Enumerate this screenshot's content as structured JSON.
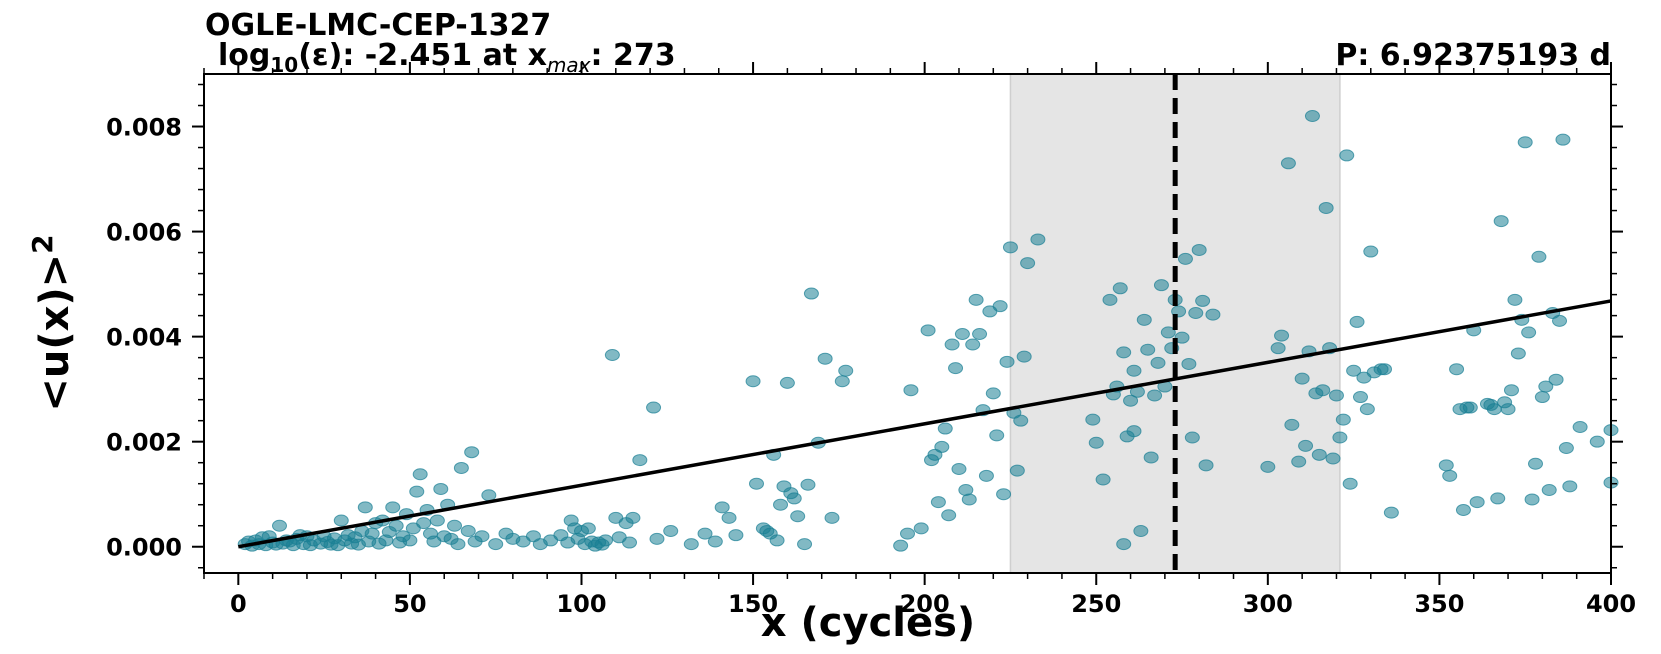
{
  "header": {
    "title": "OGLE-LMC-CEP-1327",
    "eps_prefix": "log",
    "eps_sub": "10",
    "eps_mid": "(ε): -2.451 at x",
    "xmax_sub": "max",
    "xmax_val": ": 273",
    "period": "P: 6.92375193 d"
  },
  "chart_data": {
    "type": "scatter",
    "xlabel": "x (cycles)",
    "ylabel": "<u(x)>",
    "ylabel_sup": "2",
    "xlim": [
      -10,
      400
    ],
    "ylim": [
      -0.0005,
      0.009
    ],
    "xticks": [
      0,
      50,
      100,
      150,
      200,
      250,
      300,
      350,
      400
    ],
    "xtick_labels": [
      "0",
      "50",
      "100",
      "150",
      "200",
      "250",
      "300",
      "350",
      "400"
    ],
    "yticks": [
      0.0,
      0.002,
      0.004,
      0.006,
      0.008
    ],
    "ytick_labels": [
      "0.000",
      "0.002",
      "0.004",
      "0.006",
      "0.008"
    ],
    "colors": {
      "points": "#1a7f94",
      "line": "#000000",
      "band": "#e5e5e5",
      "vline": "#000000"
    },
    "shaded_band": [
      225,
      321
    ],
    "vline_x": 273,
    "fit_line": {
      "x": [
        0,
        400
      ],
      "y": [
        0.0,
        0.00468
      ]
    },
    "points": [
      [
        2,
        5e-05
      ],
      [
        3,
        0.0001
      ],
      [
        4,
        2e-05
      ],
      [
        5,
        0.00012
      ],
      [
        6,
        5e-05
      ],
      [
        7,
        0.00018
      ],
      [
        8,
        3e-05
      ],
      [
        9,
        0.0002
      ],
      [
        10,
        8e-05
      ],
      [
        11,
        4e-05
      ],
      [
        12,
        0.0004
      ],
      [
        13,
        6e-05
      ],
      [
        14,
        0.00012
      ],
      [
        15,
        0.0001
      ],
      [
        16,
        3e-05
      ],
      [
        17,
        0.00015
      ],
      [
        18,
        0.00022
      ],
      [
        19,
        5e-05
      ],
      [
        20,
        0.0002
      ],
      [
        21,
        3e-05
      ],
      [
        22,
        0.00012
      ],
      [
        24,
        6e-05
      ],
      [
        25,
        0.0002
      ],
      [
        26,
        9e-05
      ],
      [
        27,
        4e-05
      ],
      [
        28,
        0.00016
      ],
      [
        29,
        3e-05
      ],
      [
        30,
        0.0005
      ],
      [
        31,
        0.00012
      ],
      [
        32,
        0.00022
      ],
      [
        33,
        6e-05
      ],
      [
        34,
        0.00018
      ],
      [
        35,
        4e-05
      ],
      [
        36,
        0.0003
      ],
      [
        37,
        0.00075
      ],
      [
        38,
        0.0001
      ],
      [
        39,
        0.00025
      ],
      [
        40,
        0.00045
      ],
      [
        41,
        6e-05
      ],
      [
        42,
        0.0005
      ],
      [
        43,
        0.00012
      ],
      [
        44,
        0.00028
      ],
      [
        45,
        0.00075
      ],
      [
        46,
        0.0004
      ],
      [
        47,
        8e-05
      ],
      [
        48,
        0.0002
      ],
      [
        49,
        0.00062
      ],
      [
        50,
        0.00012
      ],
      [
        51,
        0.00035
      ],
      [
        52,
        0.00105
      ],
      [
        53,
        0.00138
      ],
      [
        54,
        0.00045
      ],
      [
        55,
        0.0007
      ],
      [
        56,
        0.00025
      ],
      [
        57,
        0.0001
      ],
      [
        58,
        0.0005
      ],
      [
        59,
        0.0011
      ],
      [
        60,
        0.0002
      ],
      [
        61,
        0.0008
      ],
      [
        62,
        0.00015
      ],
      [
        63,
        0.0004
      ],
      [
        64,
        5e-05
      ],
      [
        65,
        0.0015
      ],
      [
        67,
        0.0003
      ],
      [
        68,
        0.0018
      ],
      [
        69,
        0.0001
      ],
      [
        71,
        0.0002
      ],
      [
        73,
        0.00098
      ],
      [
        75,
        5e-05
      ],
      [
        78,
        0.00025
      ],
      [
        80,
        0.00015
      ],
      [
        83,
        0.0001
      ],
      [
        86,
        0.0002
      ],
      [
        88,
        5e-05
      ],
      [
        91,
        0.00012
      ],
      [
        94,
        0.00022
      ],
      [
        96,
        8e-05
      ],
      [
        97,
        0.0005
      ],
      [
        98,
        0.00035
      ],
      [
        99,
        0.00015
      ],
      [
        100,
        0.0003
      ],
      [
        101,
        5e-05
      ],
      [
        102,
        0.00035
      ],
      [
        103,
        0.0001
      ],
      [
        104,
        2e-05
      ],
      [
        105,
        8e-05
      ],
      [
        106,
        4e-05
      ],
      [
        107,
        0.00012
      ],
      [
        109,
        0.00365
      ],
      [
        110,
        0.00055
      ],
      [
        111,
        0.00018
      ],
      [
        113,
        0.00045
      ],
      [
        114,
        8e-05
      ],
      [
        115,
        0.00055
      ],
      [
        117,
        0.00165
      ],
      [
        121,
        0.00265
      ],
      [
        122,
        0.00015
      ],
      [
        126,
        0.0003
      ],
      [
        132,
        5e-05
      ],
      [
        136,
        0.00025
      ],
      [
        139,
        0.0001
      ],
      [
        141,
        0.00075
      ],
      [
        143,
        0.00055
      ],
      [
        145,
        0.00022
      ],
      [
        150,
        0.00315
      ],
      [
        151,
        0.0012
      ],
      [
        153,
        0.00035
      ],
      [
        154,
        0.0003
      ],
      [
        155,
        0.00025
      ],
      [
        156,
        0.00175
      ],
      [
        157,
        0.00012
      ],
      [
        158,
        0.0008
      ],
      [
        159,
        0.00115
      ],
      [
        160,
        0.00312
      ],
      [
        161,
        0.00102
      ],
      [
        162,
        0.00092
      ],
      [
        163,
        0.00058
      ],
      [
        165,
        5e-05
      ],
      [
        166,
        0.00118
      ],
      [
        167,
        0.00482
      ],
      [
        169,
        0.00198
      ],
      [
        171,
        0.00358
      ],
      [
        173,
        0.00055
      ],
      [
        176,
        0.00315
      ],
      [
        177,
        0.00335
      ],
      [
        193,
        2e-05
      ],
      [
        195,
        0.00025
      ],
      [
        196,
        0.00298
      ],
      [
        199,
        0.00035
      ],
      [
        201,
        0.00412
      ],
      [
        202,
        0.00165
      ],
      [
        203,
        0.00175
      ],
      [
        204,
        0.00085
      ],
      [
        205,
        0.0019
      ],
      [
        206,
        0.00225
      ],
      [
        207,
        0.0006
      ],
      [
        208,
        0.00385
      ],
      [
        209,
        0.0034
      ],
      [
        210,
        0.00148
      ],
      [
        211,
        0.00405
      ],
      [
        212,
        0.00108
      ],
      [
        213,
        0.0009
      ],
      [
        214,
        0.00385
      ],
      [
        215,
        0.0047
      ],
      [
        216,
        0.00405
      ],
      [
        217,
        0.0026
      ],
      [
        218,
        0.00135
      ],
      [
        219,
        0.00448
      ],
      [
        220,
        0.00292
      ],
      [
        221,
        0.00212
      ],
      [
        222,
        0.00458
      ],
      [
        223,
        0.001
      ],
      [
        224,
        0.00352
      ],
      [
        225,
        0.0057
      ],
      [
        226,
        0.00255
      ],
      [
        227,
        0.00145
      ],
      [
        228,
        0.0024
      ],
      [
        229,
        0.00362
      ],
      [
        230,
        0.0054
      ],
      [
        233,
        0.00585
      ],
      [
        249,
        0.00242
      ],
      [
        250,
        0.00198
      ],
      [
        252,
        0.00128
      ],
      [
        254,
        0.0047
      ],
      [
        255,
        0.0029
      ],
      [
        256,
        0.00305
      ],
      [
        257,
        0.00492
      ],
      [
        258,
        0.0037
      ],
      [
        258,
        5e-05
      ],
      [
        259,
        0.0021
      ],
      [
        260,
        0.00278
      ],
      [
        261,
        0.00335
      ],
      [
        261,
        0.0022
      ],
      [
        262,
        0.00295
      ],
      [
        263,
        0.0003
      ],
      [
        264,
        0.00432
      ],
      [
        265,
        0.00375
      ],
      [
        266,
        0.0017
      ],
      [
        267,
        0.00288
      ],
      [
        268,
        0.0035
      ],
      [
        269,
        0.00498
      ],
      [
        270,
        0.00305
      ],
      [
        271,
        0.00408
      ],
      [
        272,
        0.00378
      ],
      [
        273,
        0.0047
      ],
      [
        274,
        0.00448
      ],
      [
        275,
        0.00398
      ],
      [
        276,
        0.00548
      ],
      [
        277,
        0.00348
      ],
      [
        278,
        0.00208
      ],
      [
        279,
        0.00445
      ],
      [
        280,
        0.00565
      ],
      [
        281,
        0.00468
      ],
      [
        282,
        0.00155
      ],
      [
        284,
        0.00442
      ],
      [
        300,
        0.00152
      ],
      [
        303,
        0.00378
      ],
      [
        304,
        0.00402
      ],
      [
        306,
        0.0073
      ],
      [
        307,
        0.00232
      ],
      [
        309,
        0.00162
      ],
      [
        310,
        0.0032
      ],
      [
        311,
        0.00192
      ],
      [
        312,
        0.00372
      ],
      [
        313,
        0.0082
      ],
      [
        314,
        0.00292
      ],
      [
        315,
        0.00175
      ],
      [
        316,
        0.00298
      ],
      [
        317,
        0.00645
      ],
      [
        318,
        0.00378
      ],
      [
        319,
        0.00168
      ],
      [
        320,
        0.00288
      ],
      [
        321,
        0.00208
      ],
      [
        322,
        0.00242
      ],
      [
        323,
        0.00745
      ],
      [
        324,
        0.0012
      ],
      [
        325,
        0.00335
      ],
      [
        326,
        0.00428
      ],
      [
        327,
        0.00285
      ],
      [
        328,
        0.00322
      ],
      [
        329,
        0.00262
      ],
      [
        330,
        0.00562
      ],
      [
        331,
        0.00332
      ],
      [
        333,
        0.00338
      ],
      [
        334,
        0.00338
      ],
      [
        336,
        0.00065
      ],
      [
        352,
        0.00155
      ],
      [
        353,
        0.00135
      ],
      [
        355,
        0.00338
      ],
      [
        356,
        0.00262
      ],
      [
        357,
        0.0007
      ],
      [
        358,
        0.00265
      ],
      [
        359,
        0.00265
      ],
      [
        360,
        0.00412
      ],
      [
        361,
        0.00085
      ],
      [
        364,
        0.00272
      ],
      [
        365,
        0.0027
      ],
      [
        366,
        0.00262
      ],
      [
        367,
        0.00092
      ],
      [
        368,
        0.0062
      ],
      [
        369,
        0.00275
      ],
      [
        370,
        0.00262
      ],
      [
        371,
        0.00298
      ],
      [
        372,
        0.0047
      ],
      [
        373,
        0.00368
      ],
      [
        374,
        0.00432
      ],
      [
        375,
        0.0077
      ],
      [
        376,
        0.00408
      ],
      [
        377,
        0.0009
      ],
      [
        378,
        0.00158
      ],
      [
        379,
        0.00552
      ],
      [
        380,
        0.00285
      ],
      [
        381,
        0.00305
      ],
      [
        382,
        0.00108
      ],
      [
        383,
        0.00445
      ],
      [
        384,
        0.00318
      ],
      [
        385,
        0.0043
      ],
      [
        386,
        0.00775
      ],
      [
        387,
        0.00188
      ],
      [
        388,
        0.00115
      ],
      [
        391,
        0.00228
      ],
      [
        396,
        0.002
      ],
      [
        400,
        0.00222
      ],
      [
        400,
        0.00122
      ]
    ]
  }
}
